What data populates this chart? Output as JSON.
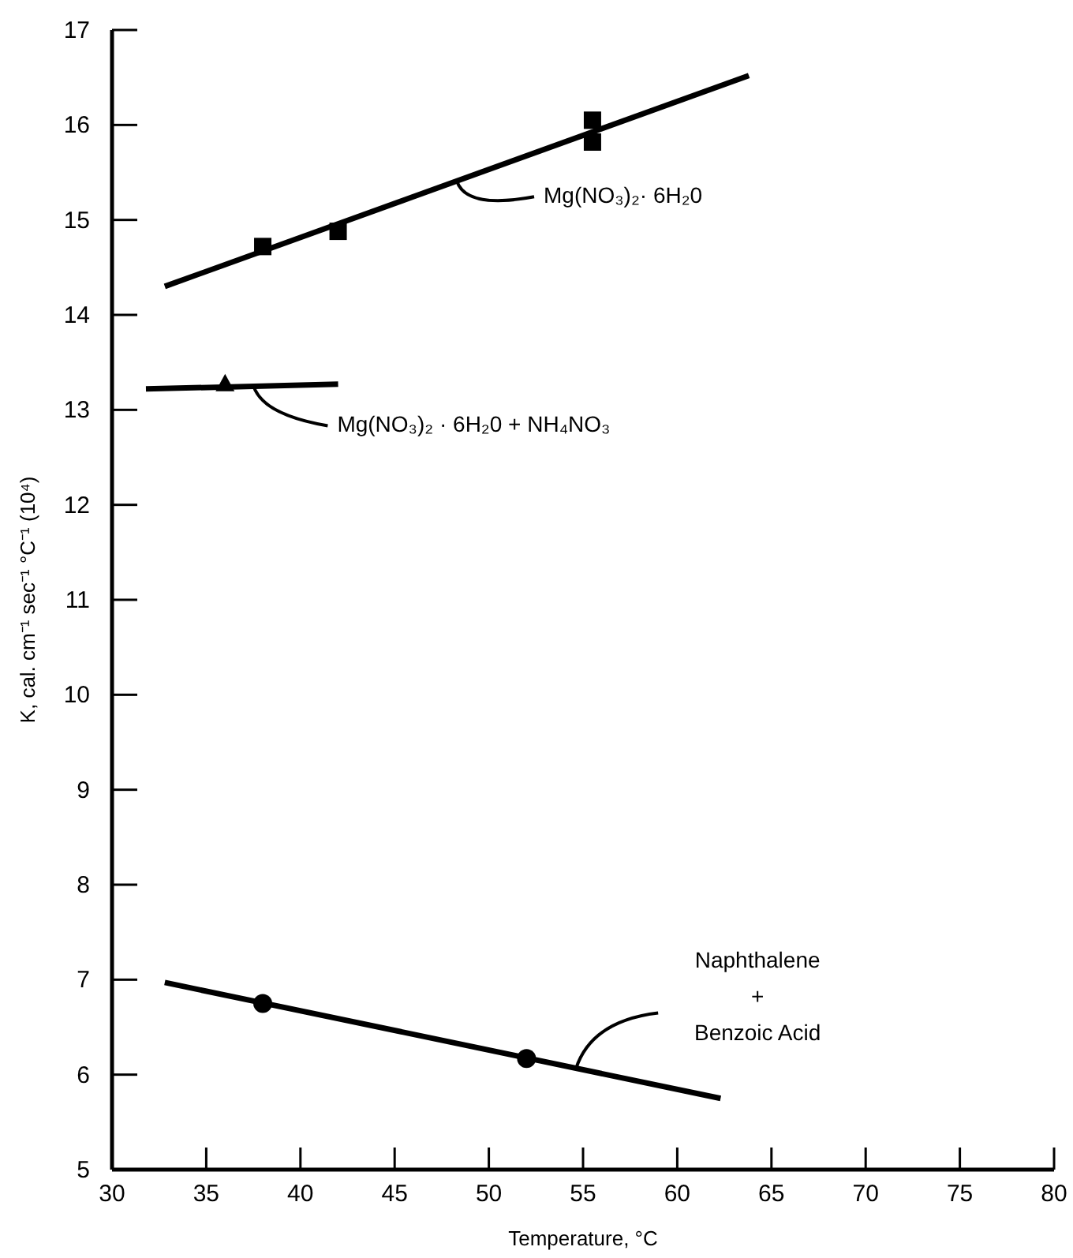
{
  "chart_data": {
    "type": "scatter",
    "xlabel": "Temperature, °C",
    "ylabel": "K, cal. cm⁻¹ sec⁻¹ °C⁻¹ (10⁴)",
    "xlim": [
      30,
      80
    ],
    "ylim": [
      5,
      17
    ],
    "xticks": [
      30,
      35,
      40,
      45,
      50,
      55,
      60,
      65,
      70,
      75,
      80
    ],
    "yticks": [
      5,
      6,
      7,
      8,
      9,
      10,
      11,
      12,
      13,
      14,
      15,
      16,
      17
    ],
    "grid": false,
    "series": [
      {
        "marker": "square",
        "color": "#000000",
        "x": [
          38,
          42,
          55.5,
          55.5
        ],
        "values": [
          14.72,
          14.88,
          16.05,
          15.82
        ]
      },
      {
        "type": "line",
        "name": "Mg(NO₃)₂· 6H₂0",
        "marker": "none",
        "color": "#000000",
        "x": [
          32.8,
          63.8
        ],
        "values": [
          14.3,
          16.52
        ]
      },
      {
        "marker": "triangle",
        "color": "#000000",
        "x": [
          36
        ],
        "values": [
          13.27
        ]
      },
      {
        "type": "line",
        "name": "Mg(NO₃)₂ · 6H₂0 + NH₄NO₃",
        "marker": "none",
        "color": "#000000",
        "x": [
          31.8,
          42
        ],
        "values": [
          13.22,
          13.27
        ]
      },
      {
        "marker": "circle",
        "color": "#000000",
        "x": [
          38,
          52
        ],
        "values": [
          6.75,
          6.17
        ]
      },
      {
        "type": "line",
        "name": "Naphthalene\n+\nBenzoic Acid",
        "marker": "none",
        "color": "#000000",
        "x": [
          32.8,
          62.3
        ],
        "values": [
          6.97,
          5.75
        ]
      }
    ]
  }
}
